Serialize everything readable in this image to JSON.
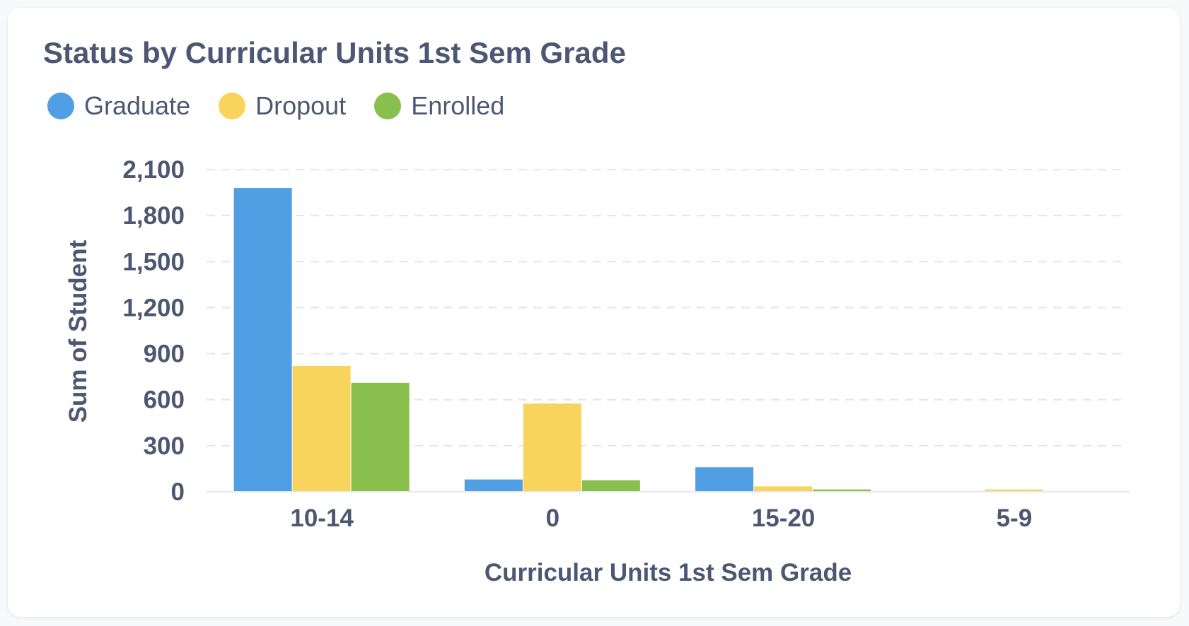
{
  "chart_data": {
    "type": "bar",
    "title": "Status by Curricular Units 1st Sem Grade",
    "xlabel": "Curricular Units 1st Sem Grade",
    "ylabel": "Sum of Student",
    "categories": [
      "10-14",
      "0",
      "15-20",
      "5-9"
    ],
    "series": [
      {
        "name": "Graduate",
        "color": "#509ee3",
        "values": [
          1980,
          80,
          160,
          0
        ]
      },
      {
        "name": "Dropout",
        "color": "#f9d45c",
        "values": [
          820,
          575,
          35,
          15
        ]
      },
      {
        "name": "Enrolled",
        "color": "#88bf4d",
        "values": [
          710,
          75,
          15,
          0
        ]
      }
    ],
    "ylim": [
      0,
      2100
    ],
    "yticks": [
      0,
      300,
      600,
      900,
      1200,
      1500,
      1800,
      2100
    ],
    "ytick_labels": [
      "0",
      "300",
      "600",
      "900",
      "1,200",
      "1,500",
      "1,800",
      "2,100"
    ],
    "grid": "horizontal-dashed",
    "legend_position": "top-left"
  }
}
